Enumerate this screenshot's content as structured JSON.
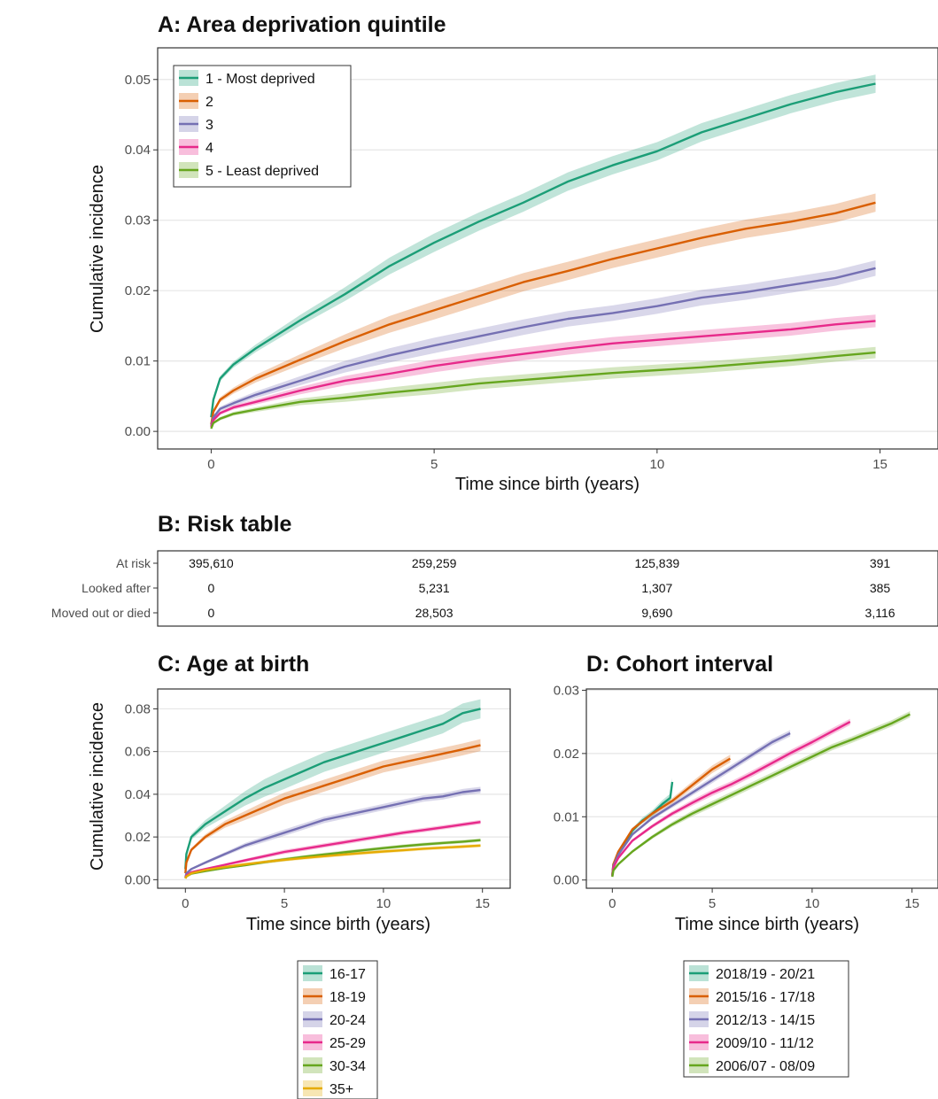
{
  "chart_data": [
    {
      "id": "A",
      "type": "line",
      "title": "A: Area deprivation quintile",
      "xlabel": "Time since birth (years)",
      "ylabel": "Cumulative incidence",
      "xlim": [
        -1.2,
        16.3
      ],
      "ylim": [
        -0.0025,
        0.0545
      ],
      "xticks": [
        0,
        5,
        10,
        15
      ],
      "yticks": [
        0.0,
        0.01,
        0.02,
        0.03,
        0.04,
        0.05
      ],
      "ytick_labels": [
        "0.00",
        "0.01",
        "0.02",
        "0.03",
        "0.04",
        "0.05"
      ],
      "grid": true,
      "legend": "top-left",
      "series": [
        {
          "name": "1 - Most deprived",
          "color": "#1b9e77",
          "ci": 0.0013,
          "x": [
            0,
            0.05,
            0.2,
            0.5,
            1,
            2,
            3,
            4,
            5,
            6,
            7,
            8,
            9,
            10,
            11,
            12,
            13,
            14,
            14.9
          ],
          "y": [
            0.002,
            0.0045,
            0.0075,
            0.0095,
            0.0118,
            0.0158,
            0.0195,
            0.0235,
            0.0268,
            0.0298,
            0.0325,
            0.0355,
            0.0378,
            0.0398,
            0.0425,
            0.0445,
            0.0465,
            0.0482,
            0.0494
          ]
        },
        {
          "name": "2",
          "color": "#d95f02",
          "ci": 0.0013,
          "x": [
            0,
            0.05,
            0.2,
            0.5,
            1,
            2,
            3,
            4,
            5,
            6,
            7,
            8,
            9,
            10,
            11,
            12,
            13,
            14,
            14.9
          ],
          "y": [
            0.001,
            0.0028,
            0.0045,
            0.0058,
            0.0075,
            0.0102,
            0.0128,
            0.0152,
            0.0172,
            0.0192,
            0.0212,
            0.0228,
            0.0245,
            0.026,
            0.0275,
            0.0288,
            0.0298,
            0.031,
            0.0325
          ]
        },
        {
          "name": "3",
          "color": "#7570b3",
          "ci": 0.0011,
          "x": [
            0,
            0.05,
            0.2,
            0.5,
            1,
            2,
            3,
            4,
            5,
            6,
            7,
            8,
            9,
            10,
            11,
            12,
            13,
            14,
            14.9
          ],
          "y": [
            0.0008,
            0.002,
            0.0032,
            0.004,
            0.0052,
            0.0072,
            0.0092,
            0.0108,
            0.0122,
            0.0135,
            0.0148,
            0.016,
            0.0168,
            0.0178,
            0.019,
            0.0198,
            0.0208,
            0.0218,
            0.0232
          ]
        },
        {
          "name": "4",
          "color": "#e7298a",
          "ci": 0.0009,
          "x": [
            0,
            0.05,
            0.2,
            0.5,
            1,
            2,
            3,
            4,
            5,
            6,
            7,
            8,
            9,
            10,
            11,
            12,
            13,
            14,
            14.9
          ],
          "y": [
            0.0006,
            0.0016,
            0.0026,
            0.0034,
            0.0042,
            0.0058,
            0.0072,
            0.0082,
            0.0093,
            0.0102,
            0.011,
            0.0118,
            0.0125,
            0.013,
            0.0135,
            0.014,
            0.0145,
            0.0152,
            0.0157
          ]
        },
        {
          "name": "5 - Least deprived",
          "color": "#66a61e",
          "ci": 0.0008,
          "x": [
            0,
            0.05,
            0.2,
            0.5,
            1,
            2,
            3,
            4,
            5,
            6,
            7,
            8,
            9,
            10,
            11,
            12,
            13,
            14,
            14.9
          ],
          "y": [
            0.0004,
            0.0012,
            0.0018,
            0.0025,
            0.0031,
            0.0042,
            0.0048,
            0.0055,
            0.0061,
            0.0068,
            0.0073,
            0.0078,
            0.0083,
            0.0087,
            0.0091,
            0.0096,
            0.0101,
            0.0107,
            0.0112
          ]
        }
      ]
    },
    {
      "id": "C",
      "type": "line",
      "title": "C: Age at birth",
      "xlabel": "Time since birth (years)",
      "ylabel": "Cumulative incidence",
      "xlim": [
        -1.4,
        16.4
      ],
      "ylim": [
        -0.004,
        0.0893
      ],
      "xticks": [
        0,
        5,
        10,
        15
      ],
      "yticks": [
        0.0,
        0.02,
        0.04,
        0.06,
        0.08
      ],
      "ytick_labels": [
        "0.00",
        "0.02",
        "0.04",
        "0.06",
        "0.08"
      ],
      "grid": true,
      "legend": "bottom",
      "series": [
        {
          "name": "16-17",
          "color": "#1b9e77",
          "ci": 0.0045,
          "x": [
            0,
            0.05,
            0.3,
            1,
            2,
            3,
            4,
            5,
            6,
            7,
            8,
            9,
            10,
            11,
            12,
            13,
            14,
            14.9
          ],
          "y": [
            0.005,
            0.012,
            0.02,
            0.026,
            0.032,
            0.038,
            0.043,
            0.047,
            0.051,
            0.055,
            0.058,
            0.061,
            0.064,
            0.067,
            0.07,
            0.073,
            0.078,
            0.08
          ]
        },
        {
          "name": "18-19",
          "color": "#d95f02",
          "ci": 0.0028,
          "x": [
            0,
            0.05,
            0.3,
            1,
            2,
            3,
            4,
            5,
            6,
            7,
            8,
            9,
            10,
            11,
            12,
            13,
            14,
            14.9
          ],
          "y": [
            0.003,
            0.008,
            0.014,
            0.02,
            0.026,
            0.03,
            0.034,
            0.038,
            0.041,
            0.044,
            0.047,
            0.05,
            0.053,
            0.055,
            0.057,
            0.059,
            0.061,
            0.063
          ]
        },
        {
          "name": "20-24",
          "color": "#7570b3",
          "ci": 0.0015,
          "x": [
            0,
            0.05,
            0.3,
            1,
            2,
            3,
            4,
            5,
            6,
            7,
            8,
            9,
            10,
            11,
            12,
            13,
            14,
            14.9
          ],
          "y": [
            0.001,
            0.003,
            0.005,
            0.008,
            0.012,
            0.016,
            0.019,
            0.022,
            0.025,
            0.028,
            0.03,
            0.032,
            0.034,
            0.036,
            0.038,
            0.039,
            0.041,
            0.042
          ]
        },
        {
          "name": "25-29",
          "color": "#e7298a",
          "ci": 0.001,
          "x": [
            0,
            0.05,
            0.3,
            1,
            2,
            3,
            4,
            5,
            6,
            7,
            8,
            9,
            10,
            11,
            12,
            13,
            14,
            14.9
          ],
          "y": [
            0.0008,
            0.002,
            0.0035,
            0.005,
            0.007,
            0.009,
            0.011,
            0.013,
            0.0145,
            0.016,
            0.0175,
            0.019,
            0.0205,
            0.022,
            0.0232,
            0.0245,
            0.0258,
            0.027
          ]
        },
        {
          "name": "30-34",
          "color": "#66a61e",
          "ci": 0.0008,
          "x": [
            0,
            0.05,
            0.3,
            1,
            2,
            3,
            4,
            5,
            6,
            7,
            8,
            9,
            10,
            11,
            12,
            13,
            14,
            14.9
          ],
          "y": [
            0.0006,
            0.0015,
            0.0028,
            0.004,
            0.0055,
            0.0068,
            0.0082,
            0.0095,
            0.0107,
            0.0118,
            0.0128,
            0.0138,
            0.0148,
            0.0157,
            0.0165,
            0.0172,
            0.0178,
            0.0185
          ]
        },
        {
          "name": "35+",
          "color": "#e6ab02",
          "ci": 0.0008,
          "x": [
            0,
            0.05,
            0.3,
            1,
            2,
            3,
            4,
            5,
            6,
            7,
            8,
            9,
            10,
            11,
            12,
            13,
            14,
            14.9
          ],
          "y": [
            0.0006,
            0.0015,
            0.003,
            0.0045,
            0.006,
            0.0072,
            0.0083,
            0.0093,
            0.0102,
            0.011,
            0.0118,
            0.0125,
            0.0132,
            0.0138,
            0.0145,
            0.015,
            0.0155,
            0.016
          ]
        }
      ]
    },
    {
      "id": "D",
      "type": "line",
      "title": "D: Cohort interval",
      "xlabel": "Time since birth (years)",
      "ylabel": "",
      "xlim": [
        -1.3,
        16.3
      ],
      "ylim": [
        -0.0013,
        0.0302
      ],
      "xticks": [
        0,
        5,
        10,
        15
      ],
      "yticks": [
        0.0,
        0.01,
        0.02,
        0.03
      ],
      "ytick_labels": [
        "0.00",
        "0.01",
        "0.02",
        "0.03"
      ],
      "grid": true,
      "legend": "bottom",
      "series": [
        {
          "name": "2018/19 - 20/21",
          "color": "#1b9e77",
          "ci": 0.0009,
          "x": [
            0,
            0.05,
            0.3,
            0.7,
            1,
            1.5,
            2,
            2.5,
            2.9,
            3.0
          ],
          "y": [
            0.0008,
            0.0025,
            0.004,
            0.0062,
            0.0078,
            0.0094,
            0.0105,
            0.012,
            0.013,
            0.0155
          ]
        },
        {
          "name": "2015/16 - 17/18",
          "color": "#d95f02",
          "ci": 0.0006,
          "x": [
            0,
            0.05,
            0.3,
            1,
            2,
            3,
            4,
            5,
            5.9
          ],
          "y": [
            0.0008,
            0.0025,
            0.0045,
            0.008,
            0.0105,
            0.0125,
            0.015,
            0.0175,
            0.0192
          ]
        },
        {
          "name": "2012/13 - 14/15",
          "color": "#7570b3",
          "ci": 0.0005,
          "x": [
            0,
            0.05,
            0.3,
            1,
            2,
            3,
            4,
            5,
            6,
            7,
            8,
            8.9
          ],
          "y": [
            0.0007,
            0.0022,
            0.004,
            0.0072,
            0.0098,
            0.0118,
            0.0138,
            0.0158,
            0.0178,
            0.0198,
            0.0218,
            0.0232
          ]
        },
        {
          "name": "2009/10 - 11/12",
          "color": "#e7298a",
          "ci": 0.0005,
          "x": [
            0,
            0.05,
            0.3,
            1,
            2,
            3,
            4,
            5,
            6,
            7,
            8,
            9,
            10,
            11,
            11.9
          ],
          "y": [
            0.0006,
            0.002,
            0.0035,
            0.0062,
            0.0085,
            0.0105,
            0.0122,
            0.0138,
            0.0152,
            0.0168,
            0.0185,
            0.0202,
            0.0218,
            0.0235,
            0.025
          ]
        },
        {
          "name": "2006/07 - 08/09",
          "color": "#66a61e",
          "ci": 0.0005,
          "x": [
            0,
            0.05,
            0.3,
            1,
            2,
            3,
            4,
            5,
            6,
            7,
            8,
            9,
            10,
            11,
            12,
            13,
            14,
            14.9
          ],
          "y": [
            0.0005,
            0.0015,
            0.0025,
            0.0045,
            0.0068,
            0.0088,
            0.0105,
            0.012,
            0.0135,
            0.015,
            0.0165,
            0.018,
            0.0195,
            0.021,
            0.0222,
            0.0235,
            0.0248,
            0.0262
          ]
        }
      ]
    }
  ],
  "risk_table": {
    "title": "B: Risk table",
    "x_positions": [
      0,
      5,
      10,
      15
    ],
    "rows": [
      {
        "label": "At risk",
        "values": [
          "395,610",
          "259,259",
          "125,839",
          "391"
        ]
      },
      {
        "label": "Looked after",
        "values": [
          "0",
          "5,231",
          "1,307",
          "385"
        ]
      },
      {
        "label": "Moved out or died",
        "values": [
          "0",
          "28,503",
          "9,690",
          "3,116"
        ]
      }
    ]
  }
}
